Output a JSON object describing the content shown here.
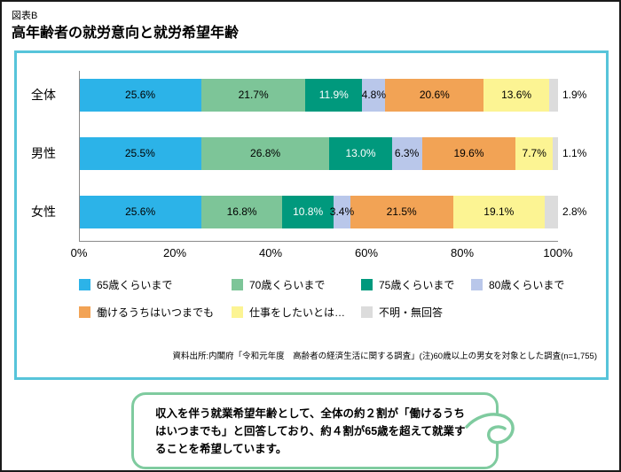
{
  "page": {
    "tag": "図表B",
    "title": "高年齢者の就労意向と就労希望年齢"
  },
  "chart_data": {
    "type": "bar",
    "orientation": "horizontal",
    "stacked": true,
    "categories": [
      "全体",
      "男性",
      "女性"
    ],
    "series": [
      {
        "name": "65歳くらいまで",
        "color": "#2cb3e8",
        "values": [
          25.6,
          25.5,
          25.6
        ]
      },
      {
        "name": "70歳くらいまで",
        "color": "#7dc598",
        "values": [
          21.7,
          26.8,
          16.8
        ]
      },
      {
        "name": "75歳くらいまで",
        "color": "#00997d",
        "values": [
          11.9,
          13.0,
          10.8
        ],
        "label_color": "#ffffff"
      },
      {
        "name": "80歳くらいまで",
        "color": "#b9c7ea",
        "values": [
          4.8,
          6.3,
          3.4
        ]
      },
      {
        "name": "働けるうちはいつまでも",
        "color": "#f2a355",
        "values": [
          20.6,
          19.6,
          21.5
        ]
      },
      {
        "name": "仕事をしたいとは…",
        "color": "#fcf493",
        "values": [
          13.6,
          7.7,
          19.1
        ]
      },
      {
        "name": "不明・無回答",
        "color": "#dcdcdc",
        "values": [
          1.9,
          1.1,
          2.8
        ],
        "label_outside": true
      }
    ],
    "x_ticks": [
      "0%",
      "20%",
      "40%",
      "60%",
      "80%",
      "100%"
    ],
    "xlim": [
      0,
      100
    ],
    "legend_position": "bottom",
    "grid": false
  },
  "source_note": "資料出所:内閣府「令和元年度　高齢者の経済生活に関する調査」(注)60歳以上の男女を対象とした調査(n=1,755)",
  "callout": {
    "text": "収入を伴う就業希望年齢として、全体の約２割が「働けるうちはいつまでも」と回答しており、約４割が65歳を超えて就業することを希望しています。"
  }
}
